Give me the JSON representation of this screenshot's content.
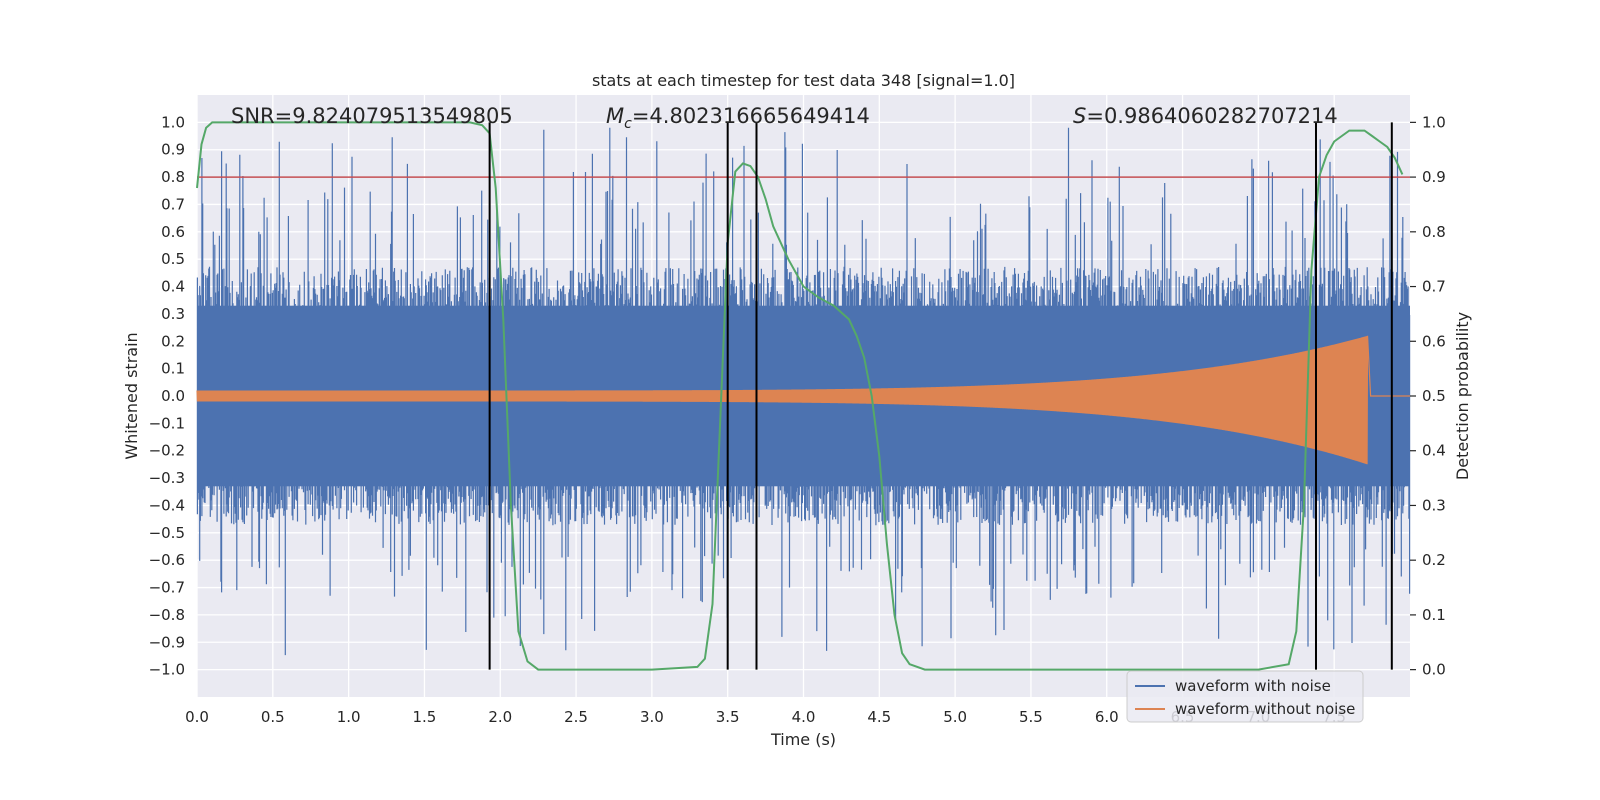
{
  "chart_data": {
    "type": "line",
    "title": "stats at each timestep for test data 348 [signal=1.0]",
    "xlabel": "Time (s)",
    "ylabel": "Whitened strain",
    "ylabel_right": "Detection probability",
    "xlim": [
      0.0,
      8.0
    ],
    "ylim": [
      -1.1,
      1.1
    ],
    "ylim_right": [
      -0.05,
      1.05
    ],
    "x_ticks": [
      0.0,
      0.5,
      1.0,
      1.5,
      2.0,
      2.5,
      3.0,
      3.5,
      4.0,
      4.5,
      5.0,
      5.5,
      6.0,
      6.5,
      7.0,
      7.5
    ],
    "x_tick_labels": [
      "0.0",
      "0.5",
      "1.0",
      "1.5",
      "2.0",
      "2.5",
      "3.0",
      "3.5",
      "4.0",
      "4.5",
      "5.0",
      "5.5",
      "6.0",
      "6.5",
      "7.0",
      "7.5"
    ],
    "y_ticks": [
      1.0,
      0.9,
      0.8,
      0.7,
      0.6,
      0.5,
      0.4,
      0.3,
      0.2,
      0.1,
      0.0,
      -0.1,
      -0.2,
      -0.3,
      -0.4,
      -0.5,
      -0.6,
      -0.7,
      -0.8,
      -0.9,
      -1.0
    ],
    "y_tick_labels": [
      "1.0",
      "0.9",
      "0.8",
      "0.7",
      "0.6",
      "0.5",
      "0.4",
      "0.3",
      "0.2",
      "0.1",
      "0.0",
      "−0.1",
      "−0.2",
      "−0.3",
      "−0.4",
      "−0.5",
      "−0.6",
      "−0.7",
      "−0.8",
      "−0.9",
      "−1.0"
    ],
    "y_right_ticks": [
      1.0,
      0.9,
      0.8,
      0.7,
      0.6,
      0.5,
      0.4,
      0.3,
      0.2,
      0.1,
      0.0
    ],
    "y_right_tick_labels": [
      "1.0",
      "0.9",
      "0.8",
      "0.7",
      "0.6",
      "0.5",
      "0.4",
      "0.3",
      "0.2",
      "0.1",
      "0.0"
    ],
    "annotations": {
      "snr": "SNR=9.824079513549805",
      "mc_symbol": "M",
      "mc_subscript": "c",
      "mc_value": "=4.802316665649414",
      "s_symbol": "S",
      "s_value": "=0.9864060282707214"
    },
    "threshold": {
      "y": 0.8,
      "color": "#c44e52"
    },
    "vertical_lines": [
      1.93,
      3.5,
      3.69,
      7.38,
      7.88
    ],
    "vertical_line_range": [
      -1.0,
      1.0
    ],
    "series": [
      {
        "name": "waveform with noise",
        "color": "#4c72b0",
        "envelope": {
          "base_amplitude": 0.45,
          "spike_max": 0.98,
          "sample_count": 1600
        }
      },
      {
        "name": "waveform without noise",
        "color": "#dd8452",
        "chirp": {
          "start_amplitude": 0.02,
          "end_amplitude_pos": 0.22,
          "end_amplitude_neg": -0.25,
          "merger_time": 7.72,
          "t_end": 8.0
        }
      },
      {
        "name": "detection probability",
        "color": "#55a868",
        "axis": "right",
        "x": [
          0.0,
          0.03,
          0.06,
          0.1,
          0.2,
          0.5,
          1.0,
          1.5,
          1.8,
          1.88,
          1.93,
          1.97,
          2.02,
          2.07,
          2.12,
          2.18,
          2.25,
          2.5,
          3.0,
          3.3,
          3.35,
          3.4,
          3.45,
          3.5,
          3.55,
          3.6,
          3.65,
          3.7,
          3.75,
          3.8,
          3.9,
          4.0,
          4.1,
          4.2,
          4.3,
          4.35,
          4.4,
          4.45,
          4.5,
          4.55,
          4.6,
          4.65,
          4.7,
          4.8,
          5.0,
          6.0,
          7.0,
          7.2,
          7.25,
          7.3,
          7.35,
          7.4,
          7.45,
          7.5,
          7.55,
          7.6,
          7.7,
          7.75,
          7.8,
          7.85,
          7.9,
          7.95
        ],
        "y": [
          0.88,
          0.96,
          0.99,
          1.0,
          1.0,
          1.0,
          1.0,
          1.0,
          1.0,
          0.995,
          0.98,
          0.88,
          0.64,
          0.3,
          0.07,
          0.015,
          0.0,
          0.0,
          0.0,
          0.005,
          0.02,
          0.12,
          0.45,
          0.78,
          0.91,
          0.925,
          0.92,
          0.9,
          0.86,
          0.81,
          0.75,
          0.7,
          0.68,
          0.665,
          0.64,
          0.61,
          0.57,
          0.5,
          0.39,
          0.23,
          0.1,
          0.03,
          0.01,
          0.0,
          0.0,
          0.0,
          0.0,
          0.01,
          0.07,
          0.3,
          0.73,
          0.9,
          0.94,
          0.965,
          0.975,
          0.985,
          0.985,
          0.975,
          0.965,
          0.955,
          0.935,
          0.905
        ]
      }
    ],
    "legend": {
      "position": "lower-right",
      "entries": [
        {
          "label": "waveform with noise",
          "color": "#4c72b0"
        },
        {
          "label": "waveform without noise",
          "color": "#dd8452"
        }
      ]
    }
  }
}
